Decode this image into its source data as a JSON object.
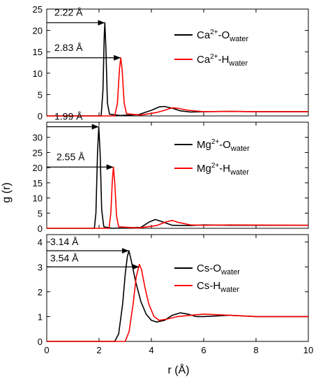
{
  "chart_data": {
    "type": "line",
    "xlabel": "r (Å)",
    "ylabel": "g (r)",
    "xlim": [
      0,
      10
    ],
    "x_ticks": [
      0,
      2,
      4,
      6,
      8,
      10
    ],
    "legend_position": "top-right",
    "panels": [
      {
        "ylim": [
          0,
          25
        ],
        "y_ticks": [
          0,
          5,
          10,
          15,
          20,
          25
        ],
        "series": [
          {
            "name": "Ca2+-Owater",
            "legend": {
              "main": "Ca",
              "sup": "2+",
              "mid": "-O",
              "sub": "water"
            },
            "color": "#000000",
            "points": [
              [
                0,
                0
              ],
              [
                2.08,
                0
              ],
              [
                2.15,
                6
              ],
              [
                2.2,
                19
              ],
              [
                2.22,
                21.8
              ],
              [
                2.26,
                16
              ],
              [
                2.32,
                3
              ],
              [
                2.4,
                0.4
              ],
              [
                2.8,
                0.1
              ],
              [
                3.5,
                0.3
              ],
              [
                4.0,
                1.3
              ],
              [
                4.3,
                2.1
              ],
              [
                4.5,
                2.2
              ],
              [
                4.8,
                1.8
              ],
              [
                5.1,
                1.2
              ],
              [
                5.5,
                0.9
              ],
              [
                6.0,
                1.0
              ],
              [
                7.0,
                1.05
              ],
              [
                8.0,
                1.0
              ],
              [
                10.0,
                1.0
              ]
            ]
          },
          {
            "name": "Ca2+-Hwater",
            "legend": {
              "main": "Ca",
              "sup": "2+",
              "mid": "-H",
              "sub": "water"
            },
            "color": "#ff0000",
            "points": [
              [
                0,
                0
              ],
              [
                2.6,
                0
              ],
              [
                2.7,
                3
              ],
              [
                2.78,
                11
              ],
              [
                2.83,
                13.6
              ],
              [
                2.88,
                11
              ],
              [
                2.96,
                3
              ],
              [
                3.05,
                0.5
              ],
              [
                3.6,
                0.2
              ],
              [
                4.2,
                0.8
              ],
              [
                4.5,
                1.3
              ],
              [
                4.8,
                1.9
              ],
              [
                5.0,
                1.8
              ],
              [
                5.4,
                1.3
              ],
              [
                6.0,
                1.0
              ],
              [
                7.0,
                1.05
              ],
              [
                8.0,
                1.0
              ],
              [
                10.0,
                1.0
              ]
            ]
          }
        ],
        "annotations": [
          {
            "label": "2.22 Å",
            "x": 2.22,
            "y": 21.8
          },
          {
            "label": "2.83 Å",
            "x": 2.83,
            "y": 13.6
          }
        ]
      },
      {
        "ylim": [
          0,
          35
        ],
        "y_ticks": [
          0,
          5,
          10,
          15,
          20,
          25,
          30
        ],
        "series": [
          {
            "name": "Mg2+-Owater",
            "legend": {
              "main": "Mg",
              "sup": "2+",
              "mid": "-O",
              "sub": "water"
            },
            "color": "#000000",
            "points": [
              [
                0,
                0
              ],
              [
                1.82,
                0
              ],
              [
                1.88,
                5
              ],
              [
                1.94,
                25
              ],
              [
                1.99,
                33.5
              ],
              [
                2.04,
                25
              ],
              [
                2.1,
                6
              ],
              [
                2.18,
                0.5
              ],
              [
                2.5,
                0
              ],
              [
                3.6,
                0.3
              ],
              [
                3.9,
                2.0
              ],
              [
                4.15,
                2.9
              ],
              [
                4.4,
                2.2
              ],
              [
                4.8,
                1.0
              ],
              [
                5.5,
                0.9
              ],
              [
                6.0,
                1.1
              ],
              [
                7.0,
                1.0
              ],
              [
                10.0,
                1.0
              ]
            ]
          },
          {
            "name": "Mg2+-Hwater",
            "legend": {
              "main": "Mg",
              "sup": "2+",
              "mid": "-H",
              "sub": "water"
            },
            "color": "#ff0000",
            "points": [
              [
                0,
                0
              ],
              [
                2.38,
                0
              ],
              [
                2.45,
                5
              ],
              [
                2.51,
                16
              ],
              [
                2.55,
                20.2
              ],
              [
                2.6,
                15
              ],
              [
                2.67,
                4
              ],
              [
                2.75,
                0.5
              ],
              [
                3.5,
                0.1
              ],
              [
                4.2,
                0.9
              ],
              [
                4.55,
                2.1
              ],
              [
                4.8,
                2.6
              ],
              [
                5.0,
                2.0
              ],
              [
                5.5,
                1.1
              ],
              [
                6.0,
                1.0
              ],
              [
                7.0,
                1.1
              ],
              [
                10.0,
                1.0
              ]
            ]
          }
        ],
        "annotations": [
          {
            "label": "1.99 Å",
            "x": 1.99,
            "y": 33.5
          },
          {
            "label": "2.55 Å",
            "x": 2.55,
            "y": 20.2
          }
        ]
      },
      {
        "ylim": [
          0,
          4.3
        ],
        "y_ticks": [
          0,
          1,
          2,
          3,
          4
        ],
        "series": [
          {
            "name": "Cs-Owater",
            "legend": {
              "main": "Cs",
              "sup": "",
              "mid": "-O",
              "sub": "water"
            },
            "color": "#000000",
            "points": [
              [
                0,
                0
              ],
              [
                2.6,
                0
              ],
              [
                2.75,
                0.3
              ],
              [
                2.9,
                1.5
              ],
              [
                3.0,
                2.7
              ],
              [
                3.08,
                3.4
              ],
              [
                3.14,
                3.65
              ],
              [
                3.22,
                3.3
              ],
              [
                3.4,
                2.4
              ],
              [
                3.6,
                1.6
              ],
              [
                3.8,
                1.1
              ],
              [
                4.0,
                0.85
              ],
              [
                4.2,
                0.78
              ],
              [
                4.5,
                0.85
              ],
              [
                4.8,
                1.05
              ],
              [
                5.1,
                1.15
              ],
              [
                5.4,
                1.1
              ],
              [
                5.7,
                1.0
              ],
              [
                6.0,
                1.0
              ],
              [
                7.0,
                1.05
              ],
              [
                8.0,
                1.0
              ],
              [
                10.0,
                1.0
              ]
            ]
          },
          {
            "name": "Cs-Hwater",
            "legend": {
              "main": "Cs",
              "sup": "",
              "mid": "-H",
              "sub": "water"
            },
            "color": "#ff0000",
            "points": [
              [
                0,
                0
              ],
              [
                3.0,
                0
              ],
              [
                3.15,
                0.4
              ],
              [
                3.3,
                1.5
              ],
              [
                3.42,
                2.6
              ],
              [
                3.54,
                3.1
              ],
              [
                3.62,
                2.9
              ],
              [
                3.75,
                2.2
              ],
              [
                3.9,
                1.5
              ],
              [
                4.1,
                1.0
              ],
              [
                4.3,
                0.85
              ],
              [
                4.6,
                0.9
              ],
              [
                5.0,
                1.0
              ],
              [
                5.5,
                1.05
              ],
              [
                6.0,
                1.1
              ],
              [
                7.0,
                1.05
              ],
              [
                8.0,
                1.0
              ],
              [
                10.0,
                1.0
              ]
            ]
          }
        ],
        "annotations": [
          {
            "label": "3.14 Å",
            "x": 3.14,
            "y": 3.65
          },
          {
            "label": "3.54 Å",
            "x": 3.54,
            "y": 3.0
          }
        ]
      }
    ]
  }
}
